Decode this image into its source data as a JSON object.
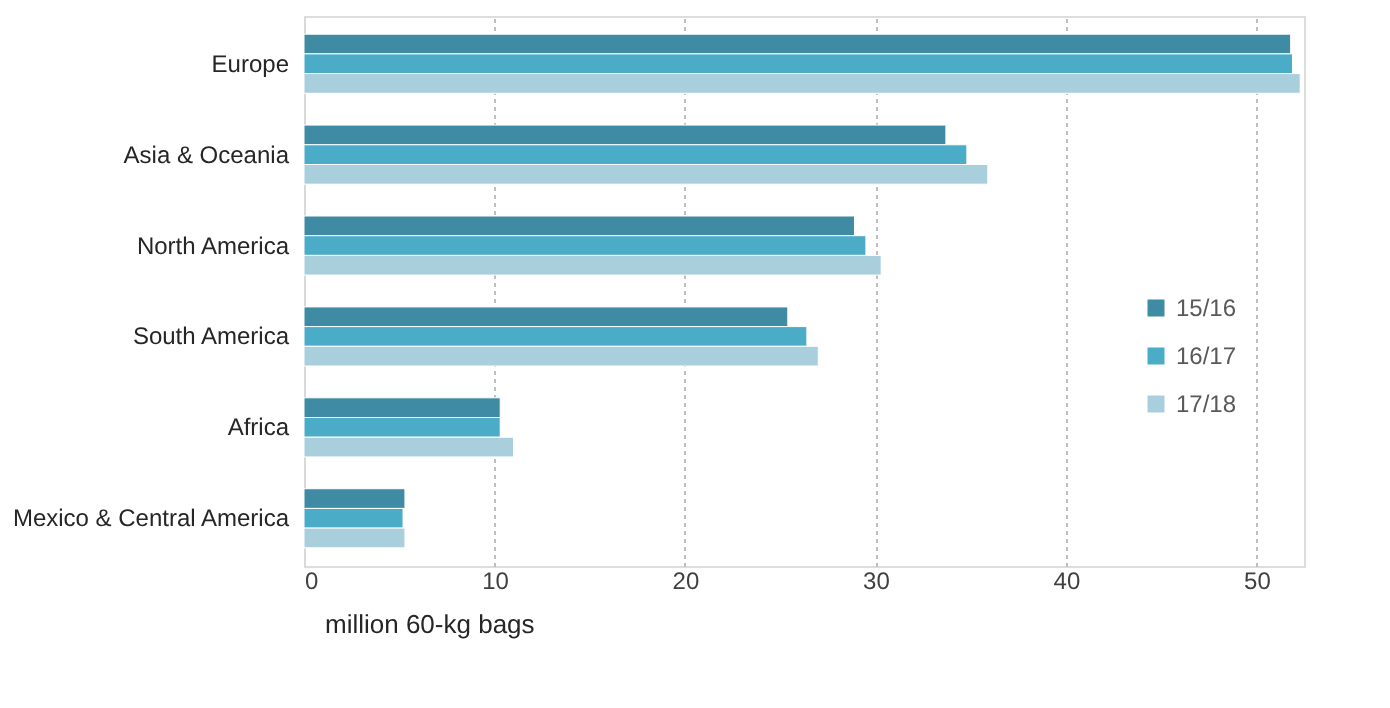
{
  "chart_data": {
    "type": "bar",
    "orientation": "horizontal",
    "xlabel": "million 60-kg bags",
    "categories": [
      "Europe",
      "Asia & Oceania",
      "North America",
      "South America",
      "Africa",
      "Mexico & Central America"
    ],
    "series": [
      {
        "name": "15/16",
        "color": "#3f8ba3",
        "values": [
          51.8,
          33.7,
          28.9,
          25.4,
          10.3,
          5.3
        ]
      },
      {
        "name": "16/17",
        "color": "#4aacc6",
        "values": [
          51.9,
          34.8,
          29.5,
          26.4,
          10.3,
          5.2
        ]
      },
      {
        "name": "17/18",
        "color": "#a9cfdc",
        "values": [
          52.3,
          35.9,
          30.3,
          27.0,
          11.0,
          5.3
        ]
      }
    ],
    "xlim": [
      0,
      52.5
    ],
    "xticks": [
      0,
      10,
      20,
      30,
      40,
      50
    ],
    "grid": "x",
    "legend": "right"
  }
}
